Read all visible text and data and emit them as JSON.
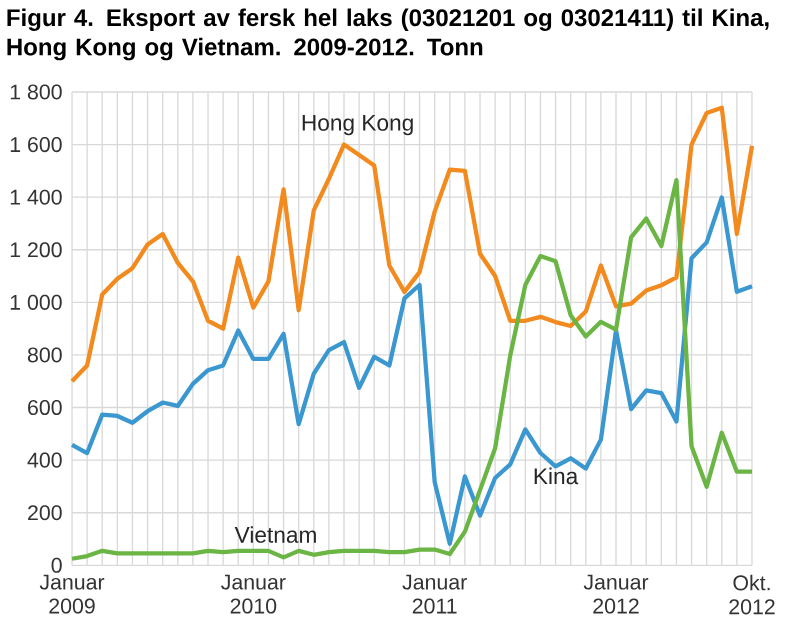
{
  "chart_data": {
    "type": "line",
    "title": "Figur 4. Eksport av fersk hel laks (03021201 og 03021411) til Kina, Hong Kong og Vietnam. 2009-2012. Tonn",
    "x": [
      "2009-01",
      "2009-02",
      "2009-03",
      "2009-04",
      "2009-05",
      "2009-06",
      "2009-07",
      "2009-08",
      "2009-09",
      "2009-10",
      "2009-11",
      "2009-12",
      "2010-01",
      "2010-02",
      "2010-03",
      "2010-04",
      "2010-05",
      "2010-06",
      "2010-07",
      "2010-08",
      "2010-09",
      "2010-10",
      "2010-11",
      "2010-12",
      "2011-01",
      "2011-02",
      "2011-03",
      "2011-04",
      "2011-05",
      "2011-06",
      "2011-07",
      "2011-08",
      "2011-09",
      "2011-10",
      "2011-11",
      "2011-12",
      "2012-01",
      "2012-02",
      "2012-03",
      "2012-04",
      "2012-05",
      "2012-06",
      "2012-07",
      "2012-08",
      "2012-09",
      "2012-10"
    ],
    "series": [
      {
        "color": "#f28a1e",
        "values": [
          700,
          760,
          1030,
          1090,
          1130,
          1220,
          1260,
          1150,
          1080,
          930,
          900,
          1170,
          980,
          1080,
          1430,
          970,
          1350,
          1470,
          1600,
          1560,
          1520,
          1140,
          1040,
          1115,
          1345,
          1505,
          1500,
          1185,
          1100,
          930,
          930,
          945,
          925,
          910,
          965,
          1140,
          985,
          995,
          1045,
          1065,
          1095,
          1600,
          1720,
          1740,
          1260,
          1595
        ]
      },
      {
        "color": "#3a97d0",
        "values": [
          458,
          427,
          573,
          568,
          542,
          586,
          619,
          606,
          690,
          742,
          760,
          893,
          785,
          785,
          880,
          537,
          729,
          818,
          849,
          675,
          793,
          760,
          1015,
          1066,
          317,
          82,
          338,
          189,
          332,
          384,
          517,
          427,
          376,
          407,
          368,
          478,
          893,
          594,
          665,
          655,
          547,
          1168,
          1228,
          1399,
          1040,
          1061
        ]
      },
      {
        "color": "#6ab544",
        "values": [
          25,
          35,
          55,
          45,
          45,
          45,
          45,
          45,
          45,
          55,
          50,
          55,
          55,
          55,
          30,
          55,
          40,
          50,
          55,
          55,
          55,
          50,
          50,
          60,
          60,
          43,
          128,
          286,
          445,
          798,
          1066,
          1176,
          1156,
          951,
          870,
          926,
          896,
          1247,
          1319,
          1214,
          1465,
          453,
          299,
          504,
          356,
          356
        ]
      }
    ],
    "annotations": [
      "Hong Kong",
      {
        "text": "Kina",
        "x": "2011-09",
        "y": 340
      },
      "Vietnam"
    ],
    "xlim": [
      "2009-01",
      "2012-10"
    ],
    "xticks": [
      {
        "value": "2009-01",
        "label": "Januar 2009"
      },
      {
        "value": "2009-02",
        "label": null
      },
      {
        "value": "2009-03",
        "label": null
      },
      {
        "value": "2009-04",
        "label": null
      },
      {
        "value": "2009-05",
        "label": null
      },
      {
        "value": "2009-06",
        "label": null
      },
      {
        "value": "2009-07",
        "label": null
      },
      {
        "value": "2009-08",
        "label": null
      },
      {
        "value": "2009-09",
        "label": null
      },
      {
        "value": "2009-10",
        "label": null
      },
      {
        "value": "2009-11",
        "label": null
      },
      {
        "value": "2009-12",
        "label": null
      },
      {
        "value": "2010-01",
        "label": "Januar 2010"
      },
      {
        "value": "2010-02",
        "label": null
      },
      {
        "value": "2010-03",
        "label": null
      },
      {
        "value": "2010-04",
        "label": null
      },
      {
        "value": "2010-05",
        "label": null
      },
      {
        "value": "2010-06",
        "label": null
      },
      {
        "value": "2010-07",
        "label": null
      },
      {
        "value": "2010-08",
        "label": null
      },
      {
        "value": "2010-09",
        "label": null
      },
      {
        "value": "2010-10",
        "label": null
      },
      {
        "value": "2010-11",
        "label": null
      },
      {
        "value": "2010-12",
        "label": null
      },
      {
        "value": "2011-01",
        "label": "Januar 2011"
      },
      {
        "value": "2011-02",
        "label": null
      },
      {
        "value": "2011-03",
        "label": null
      },
      {
        "value": "2011-04",
        "label": null
      },
      {
        "value": "2011-05",
        "label": null
      },
      {
        "value": "2011-06",
        "label": null
      },
      {
        "value": "2011-07",
        "label": null
      },
      {
        "value": "2011-08",
        "label": null
      },
      {
        "value": "2011-09",
        "label": null
      },
      {
        "value": "2011-10",
        "label": null
      },
      {
        "value": "2011-11",
        "label": null
      },
      {
        "value": "2011-12",
        "label": null
      },
      {
        "value": "2012-01",
        "label": "Januar 2012"
      },
      {
        "value": "2012-02",
        "label": null
      },
      {
        "value": "2012-03",
        "label": null
      },
      {
        "value": "2012-04",
        "label": null
      },
      {
        "value": "2012-05",
        "label": null
      },
      {
        "value": "2012-06",
        "label": null
      },
      {
        "value": "2012-07",
        "label": null
      },
      {
        "value": "2012-08",
        "label": null
      },
      {
        "value": "2012-09",
        "label": null
      },
      {
        "value": "2012-10",
        "label": "Okt. 2012"
      }
    ],
    "ylim": [
      0,
      1800
    ],
    "yticks": [
      0,
      200,
      400,
      600,
      800,
      {
        "value": 1000,
        "label": "1 000"
      },
      {
        "value": 1200,
        "label": "1 200"
      },
      {
        "value": 1400,
        "label": "1 400"
      },
      {
        "value": 1600,
        "label": "1 600"
      },
      {
        "value": 1800,
        "label": "1 800"
      }
    ],
    "grid": true
  }
}
